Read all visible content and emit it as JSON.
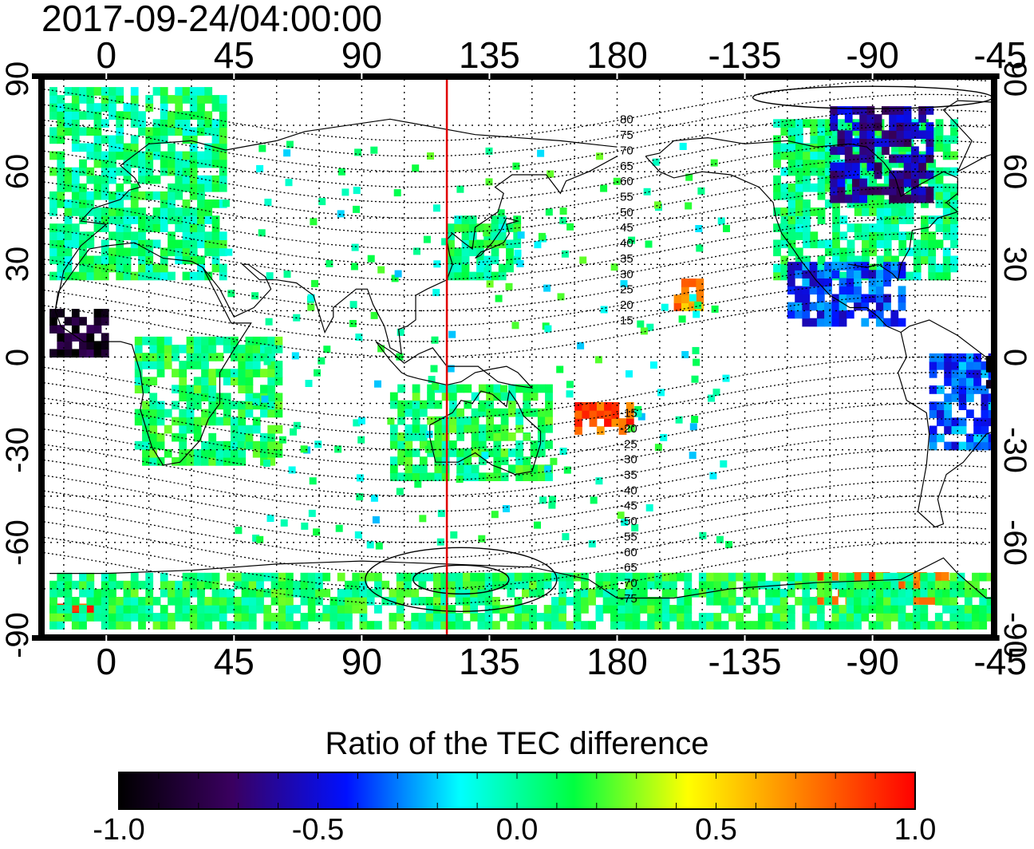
{
  "title": "2017-09-24/04:00:00",
  "map": {
    "lon_ticks_top": [
      "0",
      "45",
      "90",
      "135",
      "180",
      "-135",
      "-90",
      "-45"
    ],
    "lon_ticks_bottom": [
      "0",
      "45",
      "90",
      "135",
      "180",
      "-135",
      "-90",
      "-45"
    ],
    "lat_ticks_left": [
      "90",
      "60",
      "30",
      "0",
      "-30",
      "-60",
      "-90"
    ],
    "lat_ticks_right": [
      "90",
      "60",
      "30",
      "0",
      "-30",
      "-60",
      "-90"
    ],
    "terminator_longitude": 120,
    "magnetic_labels": [
      "80",
      "75",
      "70",
      "65",
      "60",
      "55",
      "50",
      "45",
      "40",
      "35",
      "30",
      "25",
      "20",
      "15",
      "-15",
      "-20",
      "-25",
      "-30",
      "-35",
      "-40",
      "-45",
      "-50",
      "-55",
      "-60",
      "-65",
      "-70",
      "-75"
    ],
    "colors": {
      "terminator": "#e00000",
      "frame": "#000000"
    }
  },
  "colorbar": {
    "title": "Ratio of the TEC difference",
    "ticks": [
      "-1.0",
      "-0.5",
      "0.0",
      "0.5",
      "1.0"
    ],
    "range": [
      -1.0,
      1.0
    ],
    "stops": [
      "#000000",
      "#3a0060",
      "#0010ff",
      "#00ffff",
      "#00ff40",
      "#ffff00",
      "#ff8000",
      "#ff0000"
    ]
  },
  "chart_data": {
    "type": "heatmap",
    "title": "2017-09-24/04:00:00",
    "xlim": [
      -22,
      312
    ],
    "ylim": [
      -90,
      90
    ],
    "colorbar_label": "Ratio of the TEC difference",
    "regions": [
      {
        "lon": [
          -20,
          40
        ],
        "lat": [
          25,
          85
        ],
        "value": 0.05
      },
      {
        "lon": [
          10,
          60
        ],
        "lat": [
          -35,
          5
        ],
        "value": 0.1
      },
      {
        "lon": [
          100,
          155
        ],
        "lat": [
          -40,
          -10
        ],
        "value": 0.1
      },
      {
        "lon": [
          120,
          145
        ],
        "lat": [
          25,
          45
        ],
        "value": 0.05
      },
      {
        "lon": [
          235,
          300
        ],
        "lat": [
          25,
          75
        ],
        "value": 0.05
      },
      {
        "lon": [
          240,
          280
        ],
        "lat": [
          10,
          30
        ],
        "value": -0.4
      },
      {
        "lon": [
          290,
          320
        ],
        "lat": [
          -30,
          0
        ],
        "value": -0.35
      },
      {
        "lon": [
          255,
          290
        ],
        "lat": [
          50,
          80
        ],
        "value": -0.6
      },
      {
        "lon": [
          -20,
          0
        ],
        "lat": [
          0,
          15
        ],
        "value": -0.9
      },
      {
        "lon": [
          310,
          320
        ],
        "lat": [
          -10,
          0
        ],
        "value": -1.0
      },
      {
        "lon": [
          200,
          210
        ],
        "lat": [
          15,
          25
        ],
        "value": 0.7
      },
      {
        "lon": [
          165,
          185
        ],
        "lat": [
          -25,
          -15
        ],
        "value": 0.8
      },
      {
        "lon": [
          250,
          300
        ],
        "lat": [
          -80,
          -70
        ],
        "value": 0.75
      },
      {
        "lon": [
          -20,
          -5
        ],
        "lat": [
          -85,
          -80
        ],
        "value": 0.9
      },
      {
        "lon": [
          -20,
          320
        ],
        "lat": [
          -88,
          -70
        ],
        "value": 0.1
      }
    ]
  }
}
